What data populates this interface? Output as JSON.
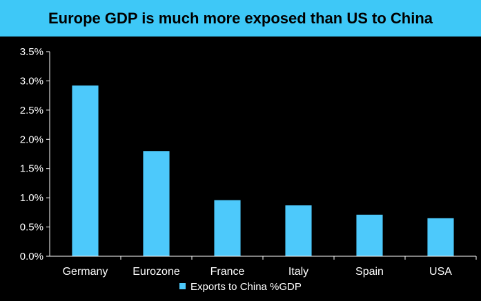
{
  "chart_data": {
    "type": "bar",
    "title": "Europe GDP is much more exposed than US to China",
    "categories": [
      "Germany",
      "Eurozone",
      "France",
      "Italy",
      "Spain",
      "USA"
    ],
    "series": [
      {
        "name": "Exports to China %GDP",
        "values": [
          2.92,
          1.8,
          0.96,
          0.87,
          0.71,
          0.65
        ]
      }
    ],
    "ylim": [
      0,
      3.5
    ],
    "yticks": [
      "0.0%",
      "0.5%",
      "1.0%",
      "1.5%",
      "2.0%",
      "2.5%",
      "3.0%",
      "3.5%"
    ],
    "xlabel": "",
    "ylabel": "",
    "legend_position": "bottom",
    "bar_color": "#4dc9fb",
    "title_bg_color": "#3ec8f7",
    "background_color": "#000000"
  }
}
